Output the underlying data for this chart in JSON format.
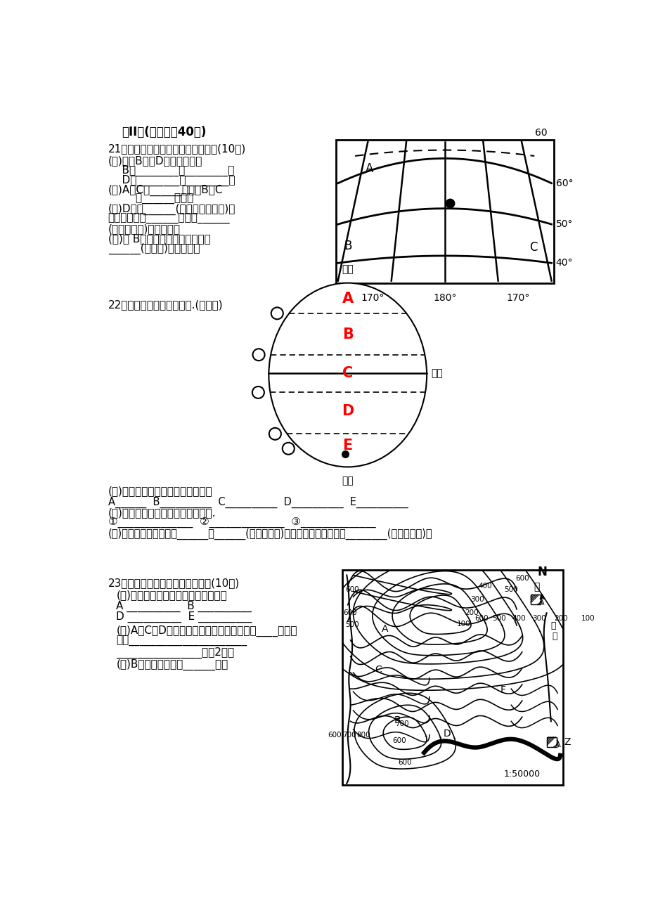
{
  "bg_color": "#ffffff",
  "title": "第II卷(综合题內40分)",
  "q21_title": "21．根据下面经纬网图，回答问题。(10分)",
  "q21_1": "(１)写出B点和D点的经纬度。",
  "q21_2": "    B：________，________；",
  "q21_3": "    D：________，________。",
  "q21_4": "(２)A在C的______方向；B在C",
  "q21_5": "        的______方向。",
  "q21_6": "(３)D位于______(东半球或西半球)，",
  "q21_7": "位于五带中的______带，是______",
  "q21_8": "(高、中、低)纬度地区。",
  "q21_9": "(４)从 B点沿所在纬线向东行进，",
  "q21_10": "______(能或否)回到原点。",
  "q22_title": "22．读《五带划分图》回答.(１０分)",
  "q22_1": "(１)写出图中字母所处的五带名称：",
  "q22_2": "A______  B__________  C__________  D__________  E__________",
  "q22_3": "(２)写出图中数码的纬线度数及符号.",
  "q22_4": "①______________  ②______________  ③______________",
  "q22_5": "(３)有极昼极夜现象的是______、______(用字母填写)；有阳光直射现象的是________(用字母填写)。",
  "q23_title": "23．读等高线地形图，回答问题。(10分)",
  "q23_1": "(１)写出下列字母所代表的山地部位：",
  "q23_2": "A __________  B __________",
  "q23_3": "D __________  E __________",
  "q23_4": "(２)A、C、D三处的河流有一条是错误的，是____，判断",
  "q23_5": "理由______________________",
  "q23_6": "________________。（2分）",
  "q23_7": "(３)B点的海拔高度为______米。"
}
